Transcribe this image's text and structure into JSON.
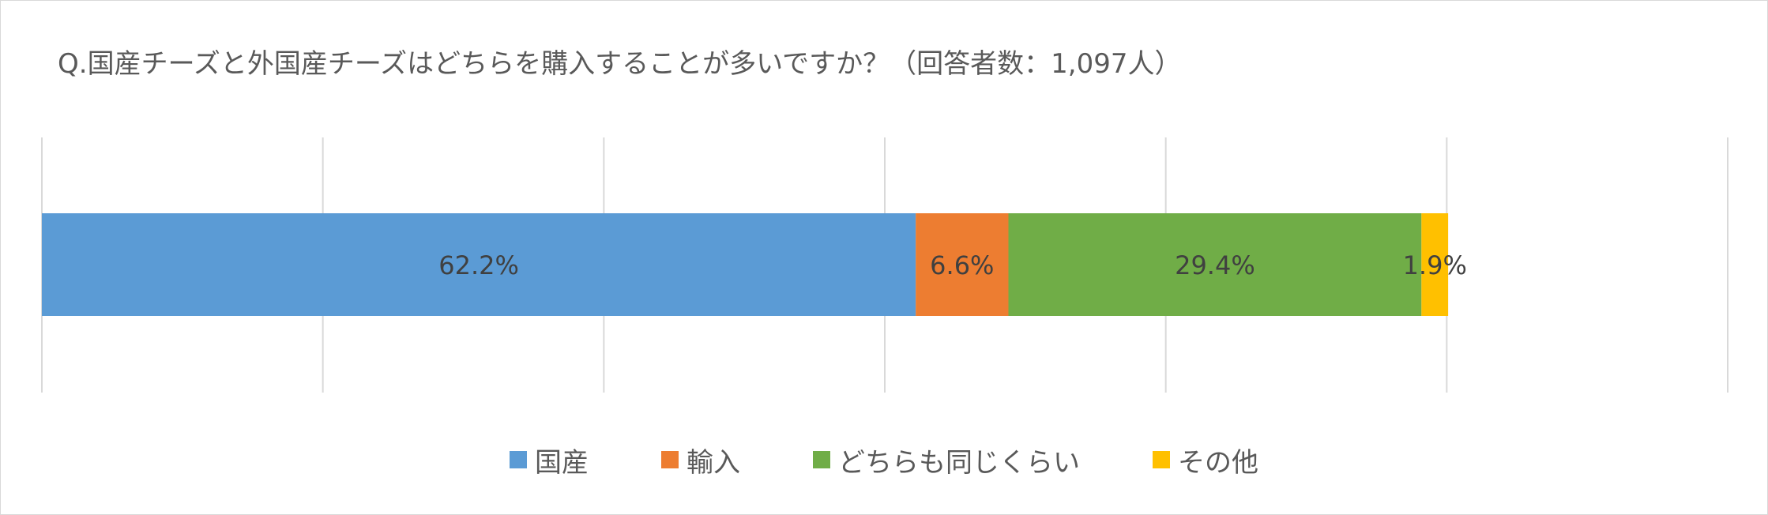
{
  "chart_data": {
    "type": "bar",
    "orientation": "horizontal-stacked",
    "title": "Q.国産チーズと外国産チーズはどちらを購入することが多いですか？（回答者数：1,097人）",
    "xlim": [
      0,
      120
    ],
    "grid": true,
    "legend_position": "bottom",
    "series": [
      {
        "name": "国産",
        "values": [
          62.2
        ],
        "label": "62.2%",
        "color": "#5b9bd5"
      },
      {
        "name": "輸入",
        "values": [
          6.6
        ],
        "label": "6.6%",
        "color": "#ed7d31"
      },
      {
        "name": "どちらも同じくらい",
        "values": [
          29.4
        ],
        "label": "29.4%",
        "color": "#70ad47"
      },
      {
        "name": "その他",
        "values": [
          1.9
        ],
        "label": "1.9%",
        "color": "#ffc000"
      }
    ]
  }
}
